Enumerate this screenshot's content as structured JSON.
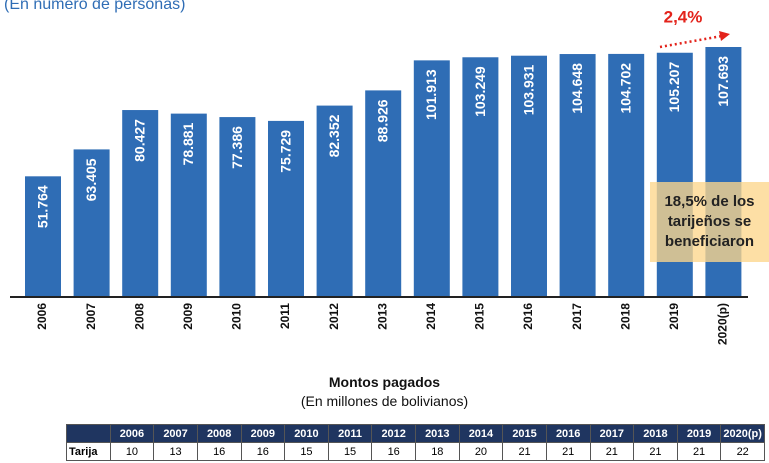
{
  "chart_data": {
    "type": "bar",
    "subtitle": "(En número de personas)",
    "categories": [
      "2006",
      "2007",
      "2008",
      "2009",
      "2010",
      "2011",
      "2012",
      "2013",
      "2014",
      "2015",
      "2016",
      "2017",
      "2018",
      "2019",
      "2020(p)"
    ],
    "values": [
      51764,
      63405,
      80427,
      78881,
      77386,
      75729,
      82352,
      88926,
      101913,
      103249,
      103931,
      104648,
      104702,
      105207,
      107693
    ],
    "value_labels": [
      "51.764",
      "63.405",
      "80.427",
      "78.881",
      "77.386",
      "75.729",
      "82.352",
      "88.926",
      "101.913",
      "103.249",
      "103.931",
      "104.648",
      "104.702",
      "105.207",
      "107.693"
    ],
    "color": "#2f6db5",
    "annotations": [
      "2,4%",
      "18,5% de los tarijeños se beneficiaron"
    ]
  },
  "table": {
    "title": "Montos pagados",
    "subtitle": "(En millones de bolivianos)",
    "header": [
      "2006",
      "2007",
      "2008",
      "2009",
      "2010",
      "2011",
      "2012",
      "2013",
      "2014",
      "2015",
      "2016",
      "2017",
      "2018",
      "2019",
      "2020(p)"
    ],
    "rows": [
      [
        "Tarija",
        10,
        13,
        16,
        16,
        15,
        15,
        16,
        18,
        20,
        21,
        21,
        21,
        21,
        21,
        22
      ]
    ]
  }
}
